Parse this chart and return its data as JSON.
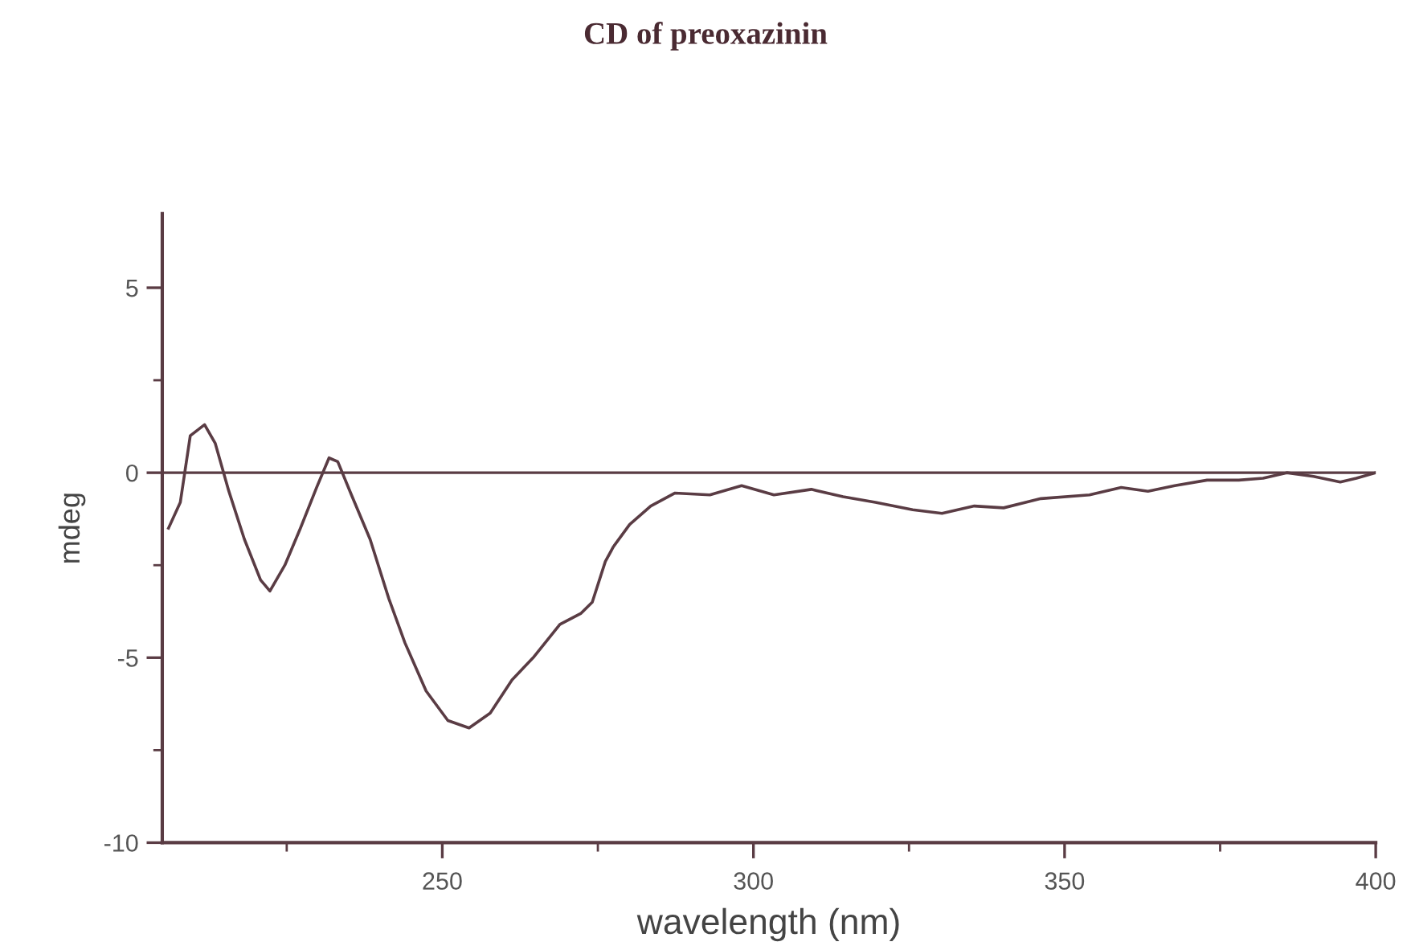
{
  "chart_data": {
    "type": "line",
    "title": "CD of preoxazinin",
    "xlabel": "wavelength (nm)",
    "ylabel": "mdeg",
    "x": [
      206.0,
      207.9,
      209.5,
      211.8,
      213.5,
      215.7,
      218.2,
      220.8,
      222.3,
      224.7,
      227.2,
      229.8,
      231.8,
      233.2,
      235.4,
      238.4,
      241.4,
      244.0,
      247.4,
      250.9,
      254.3,
      257.7,
      261.2,
      264.6,
      268.9,
      272.3,
      274.1,
      276.2,
      277.5,
      280.1,
      283.5,
      287.4,
      293.0,
      298.1,
      303.3,
      309.3,
      314.4,
      319.6,
      325.6,
      330.3,
      335.5,
      340.2,
      346.2,
      354.0,
      359.1,
      363.4,
      367.7,
      372.9,
      378.0,
      381.9,
      385.7,
      390.0,
      394.3,
      396.9,
      400.0
    ],
    "series": [
      {
        "color": "#5a3c44",
        "values": [
          -1.5,
          -0.8,
          1.0,
          1.3,
          0.8,
          -0.5,
          -1.8,
          -2.9,
          -3.2,
          -2.5,
          -1.5,
          -0.4,
          0.4,
          0.3,
          -0.6,
          -1.8,
          -3.4,
          -4.6,
          -5.9,
          -6.7,
          -6.9,
          -6.5,
          -5.6,
          -5.0,
          -4.1,
          -3.8,
          -3.5,
          -2.4,
          -2.0,
          -1.4,
          -0.9,
          -0.55,
          -0.6,
          -0.35,
          -0.6,
          -0.45,
          -0.65,
          -0.8,
          -1.0,
          -1.1,
          -0.9,
          -0.95,
          -0.7,
          -0.6,
          -0.4,
          -0.5,
          -0.35,
          -0.2,
          -0.2,
          -0.15,
          0.0,
          -0.1,
          -0.25,
          -0.15,
          0.0
        ]
      }
    ],
    "xlim": [
      205,
      400
    ],
    "xticks": [
      {
        "value": 225,
        "label": null
      },
      250,
      {
        "value": 275,
        "label": null
      },
      300,
      {
        "value": 325,
        "label": null
      },
      350,
      {
        "value": 375,
        "label": null
      },
      400
    ],
    "ylim": [
      -10,
      7
    ],
    "yticks": [
      -10,
      {
        "value": -7.5,
        "label": null
      },
      -5,
      {
        "value": -2.5,
        "label": null
      },
      0,
      {
        "value": 2.5,
        "label": null
      },
      5
    ],
    "ref_lines": [
      {
        "axis": "y",
        "value": 0,
        "color": "#5a3c44"
      }
    ],
    "grid": false
  }
}
